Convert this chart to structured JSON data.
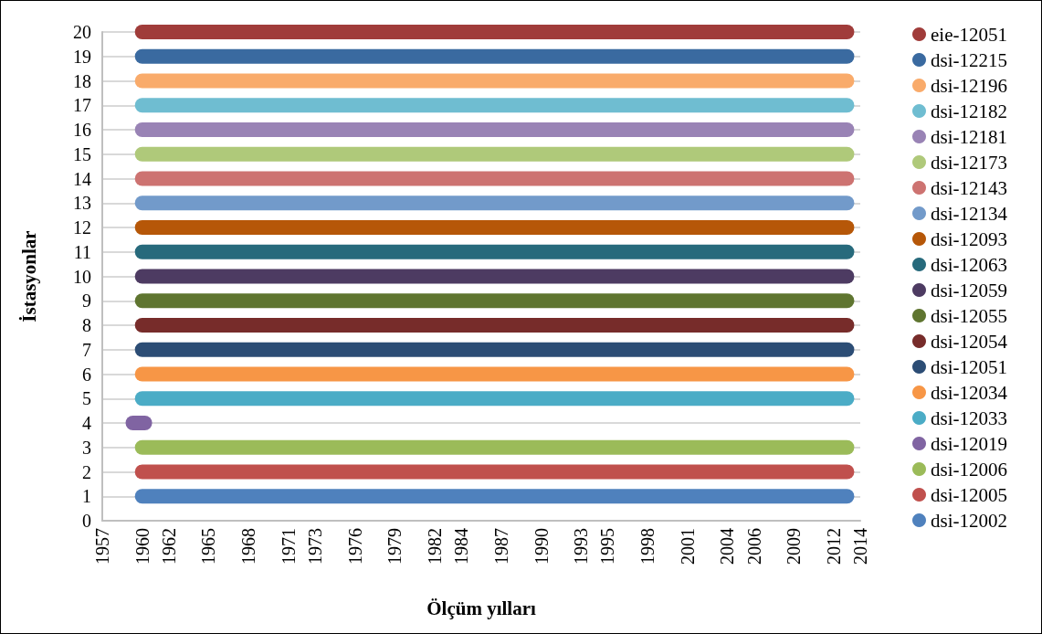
{
  "chart_data": {
    "type": "line",
    "xlabel": "Ölçüm yılları",
    "ylabel": "İstasyonlar",
    "line_style": "solid",
    "grid": "y",
    "legend": "right",
    "xlim": [
      1957,
      2014
    ],
    "xticks": [
      1957,
      1960,
      1962,
      1965,
      1968,
      1971,
      1973,
      1976,
      1979,
      1982,
      1984,
      1987,
      1990,
      1993,
      1995,
      1998,
      2001,
      2004,
      2006,
      2009,
      2012,
      2014
    ],
    "ylim": [
      0,
      20
    ],
    "yticks": [
      0,
      1,
      2,
      3,
      4,
      5,
      6,
      7,
      8,
      9,
      10,
      11,
      12,
      13,
      14,
      15,
      16,
      17,
      18,
      19,
      20
    ],
    "series": [
      {
        "name": "dsi-12002",
        "color": "#4f81bd",
        "x": [
          1960,
          2013
        ],
        "values": [
          1,
          1
        ]
      },
      {
        "name": "dsi-12005",
        "color": "#c0504d",
        "x": [
          1960,
          2013
        ],
        "values": [
          2,
          2
        ]
      },
      {
        "name": "dsi-12006",
        "color": "#9bbb59",
        "x": [
          1960,
          2013
        ],
        "values": [
          3,
          3
        ]
      },
      {
        "name": "dsi-12019",
        "color": "#8064a2",
        "x": [
          1959.3,
          1960.2
        ],
        "values": [
          4,
          4
        ]
      },
      {
        "name": "dsi-12033",
        "color": "#4bacc6",
        "x": [
          1960,
          2013
        ],
        "values": [
          5,
          5
        ]
      },
      {
        "name": "dsi-12034",
        "color": "#f79646",
        "x": [
          1960,
          2013
        ],
        "values": [
          6,
          6
        ]
      },
      {
        "name": "dsi-12051",
        "color": "#2c4d75",
        "x": [
          1960,
          2013
        ],
        "values": [
          7,
          7
        ]
      },
      {
        "name": "dsi-12054",
        "color": "#772c2a",
        "x": [
          1960,
          2013
        ],
        "values": [
          8,
          8
        ]
      },
      {
        "name": "dsi-12055",
        "color": "#5f7530",
        "x": [
          1960,
          2013
        ],
        "values": [
          9,
          9
        ]
      },
      {
        "name": "dsi-12059",
        "color": "#4d3b62",
        "x": [
          1960,
          2013
        ],
        "values": [
          10,
          10
        ]
      },
      {
        "name": "dsi-12063",
        "color": "#276a7c",
        "x": [
          1960,
          2013
        ],
        "values": [
          11,
          11
        ]
      },
      {
        "name": "dsi-12093",
        "color": "#b65708",
        "x": [
          1960,
          2013
        ],
        "values": [
          12,
          12
        ]
      },
      {
        "name": "dsi-12134",
        "color": "#729aca",
        "x": [
          1960,
          2013
        ],
        "values": [
          13,
          13
        ]
      },
      {
        "name": "dsi-12143",
        "color": "#cd7371",
        "x": [
          1960,
          2013
        ],
        "values": [
          14,
          14
        ]
      },
      {
        "name": "dsi-12173",
        "color": "#afc97a",
        "x": [
          1960,
          2013
        ],
        "values": [
          15,
          15
        ]
      },
      {
        "name": "dsi-12181",
        "color": "#9983b5",
        "x": [
          1960,
          2013
        ],
        "values": [
          16,
          16
        ]
      },
      {
        "name": "dsi-12182",
        "color": "#6fbdd1",
        "x": [
          1960,
          2013
        ],
        "values": [
          17,
          17
        ]
      },
      {
        "name": "dsi-12196",
        "color": "#f9ab6b",
        "x": [
          1960,
          2013
        ],
        "values": [
          18,
          18
        ]
      },
      {
        "name": "dsi-12215",
        "color": "#3a6aa0",
        "x": [
          1960,
          2013
        ],
        "values": [
          19,
          19
        ]
      },
      {
        "name": "eie-12051",
        "color": "#a03c3a",
        "x": [
          1960,
          2013
        ],
        "values": [
          20,
          20
        ]
      }
    ]
  }
}
